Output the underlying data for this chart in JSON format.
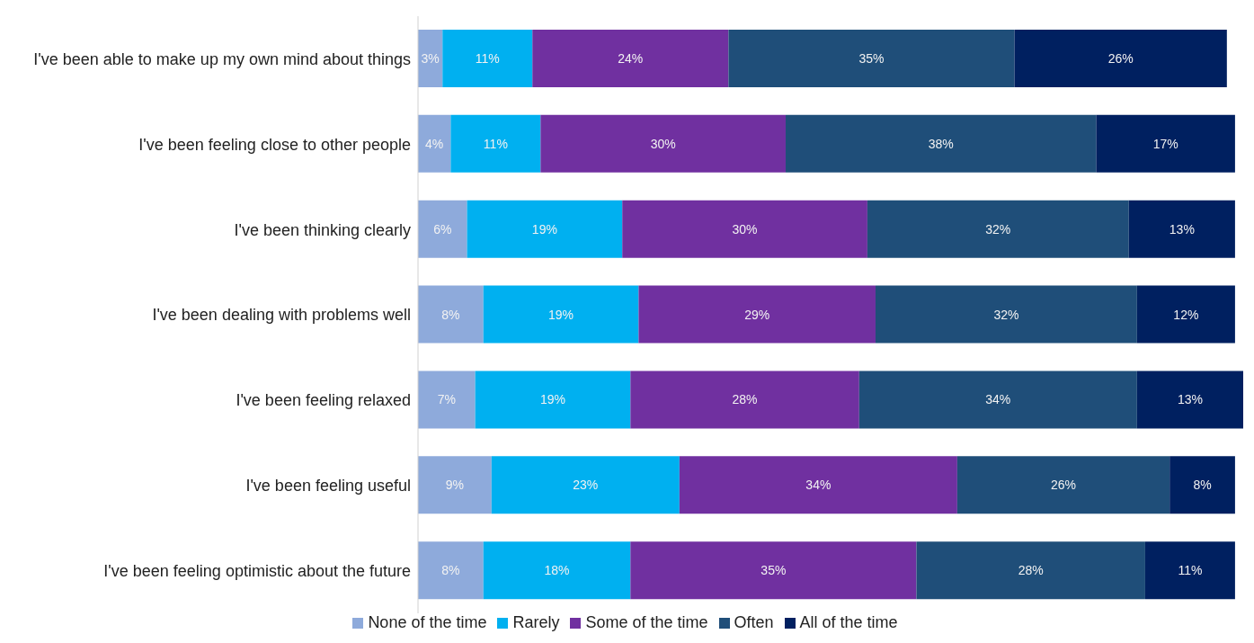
{
  "chart_data": {
    "type": "bar",
    "orientation": "horizontal",
    "stacked": true,
    "legend": "bottom",
    "xlim": [
      0,
      101
    ],
    "categories": [
      "I've been able to make up my own mind about things",
      "I've been feeling close to other people",
      "I've been thinking clearly",
      "I've been dealing with problems well",
      "I've been feeling relaxed",
      "I've been feeling useful",
      "I've been feeling optimistic about the future"
    ],
    "series": [
      {
        "name": "None of the time",
        "color": "#8eaadb",
        "values": [
          3,
          4,
          6,
          8,
          7,
          9,
          8
        ],
        "value_labels": [
          "3%",
          "4%",
          "6%",
          "8%",
          "7%",
          "9%",
          "8%"
        ]
      },
      {
        "name": "Rarely",
        "color": "#00b0f0",
        "values": [
          11,
          11,
          19,
          19,
          19,
          23,
          18
        ],
        "value_labels": [
          "11%",
          "11%",
          "19%",
          "19%",
          "19%",
          "23%",
          "18%"
        ]
      },
      {
        "name": "Some of the time",
        "color": "#7030a0",
        "values": [
          24,
          30,
          30,
          29,
          28,
          34,
          35
        ],
        "value_labels": [
          "24%",
          "30%",
          "30%",
          "29%",
          "28%",
          "34%",
          "35%"
        ]
      },
      {
        "name": "Often",
        "color": "#1f4e79",
        "values": [
          35,
          38,
          32,
          32,
          34,
          26,
          28
        ],
        "value_labels": [
          "35%",
          "38%",
          "32%",
          "32%",
          "34%",
          "26%",
          "28%"
        ]
      },
      {
        "name": "All of the time",
        "color": "#002060",
        "values": [
          26,
          17,
          13,
          12,
          13,
          8,
          11
        ],
        "value_labels": [
          "26%",
          "17%",
          "13%",
          "12%",
          "13%",
          "8%",
          "11%"
        ]
      }
    ]
  }
}
